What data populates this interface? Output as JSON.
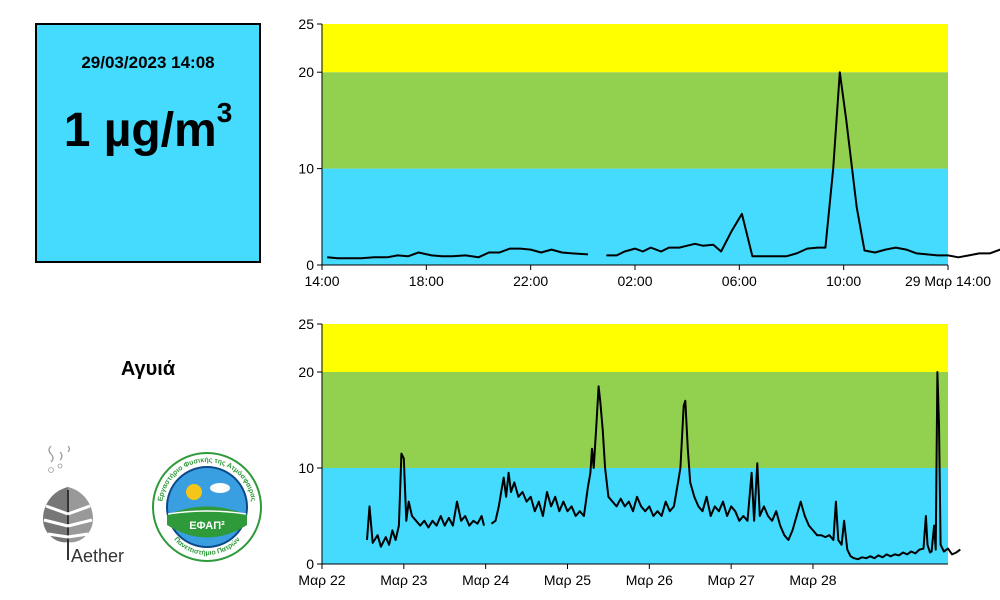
{
  "reading": {
    "datetime": "29/03/2023 14:08",
    "value": "1",
    "unit": "µg/m",
    "unit_exp": "3"
  },
  "station": {
    "name": "Αγυιά"
  },
  "logos": {
    "aether": "Aether",
    "efap_short": "ΕΦΑΠ²",
    "efap_ring_top": "Εργαστήριο Φυσικής της Ατμόσφαιρας",
    "efap_ring_bottom": "Πανεπιστήμιο Πατρών"
  },
  "colors": {
    "band_low": "#44dbff",
    "band_mid": "#92d050",
    "band_high": "#ffff00",
    "line": "#000000",
    "box": "#44dbff"
  },
  "chart_data": [
    {
      "type": "line",
      "yticks": [
        0,
        10,
        20,
        25
      ],
      "ylim": [
        0,
        25
      ],
      "xlim": [
        0,
        24
      ],
      "xticks": [
        0,
        4,
        8,
        12,
        16,
        20,
        24
      ],
      "xtick_labels": [
        "14:00",
        "18:00",
        "22:00",
        "02:00",
        "06:00",
        "10:00",
        "29 Μαρ 14:00"
      ],
      "bands": [
        {
          "from": 0,
          "to": 10
        },
        {
          "from": 10,
          "to": 20
        },
        {
          "from": 20,
          "to": 25
        }
      ],
      "segments": [
        [
          [
            0.2,
            0.8
          ],
          [
            0.6,
            0.7
          ],
          [
            1.0,
            0.7
          ],
          [
            1.5,
            0.7
          ],
          [
            2.0,
            0.8
          ],
          [
            2.5,
            0.8
          ],
          [
            2.9,
            1.0
          ],
          [
            3.3,
            0.9
          ],
          [
            3.7,
            1.3
          ],
          [
            4.2,
            1.0
          ],
          [
            4.6,
            0.9
          ],
          [
            5.0,
            0.9
          ],
          [
            5.5,
            1.0
          ],
          [
            6.0,
            0.8
          ],
          [
            6.4,
            1.3
          ],
          [
            6.8,
            1.3
          ],
          [
            7.2,
            1.7
          ],
          [
            7.6,
            1.7
          ],
          [
            8.0,
            1.6
          ],
          [
            8.4,
            1.3
          ],
          [
            8.8,
            1.6
          ],
          [
            9.2,
            1.3
          ],
          [
            9.6,
            1.2
          ],
          [
            10.2,
            1.1
          ]
        ],
        [
          [
            10.9,
            1.0
          ],
          [
            11.3,
            1.0
          ],
          [
            11.6,
            1.4
          ],
          [
            12.0,
            1.7
          ],
          [
            12.3,
            1.4
          ],
          [
            12.6,
            1.8
          ],
          [
            13.0,
            1.4
          ],
          [
            13.3,
            1.8
          ],
          [
            13.7,
            1.8
          ],
          [
            14.0,
            2.0
          ],
          [
            14.3,
            2.2
          ],
          [
            14.6,
            2.0
          ],
          [
            15.0,
            2.1
          ],
          [
            15.3,
            1.4
          ],
          [
            15.7,
            3.5
          ],
          [
            16.1,
            5.3
          ],
          [
            16.5,
            0.9
          ],
          [
            17.0,
            0.9
          ],
          [
            17.4,
            0.9
          ],
          [
            17.8,
            0.9
          ],
          [
            18.2,
            1.2
          ],
          [
            18.6,
            1.7
          ],
          [
            19.0,
            1.8
          ],
          [
            19.3,
            1.8
          ],
          [
            19.6,
            10.0
          ],
          [
            19.85,
            20.0
          ],
          [
            20.1,
            15.0
          ],
          [
            20.5,
            6.0
          ],
          [
            20.8,
            1.5
          ],
          [
            21.2,
            1.3
          ],
          [
            21.6,
            1.6
          ],
          [
            22.0,
            1.8
          ],
          [
            22.4,
            1.6
          ],
          [
            22.8,
            1.2
          ],
          [
            23.2,
            1.1
          ],
          [
            23.6,
            1.0
          ],
          [
            24.0,
            1.0
          ],
          [
            24.4,
            0.8
          ],
          [
            24.8,
            1.0
          ],
          [
            25.2,
            1.2
          ],
          [
            25.6,
            1.2
          ],
          [
            26.0,
            1.6
          ],
          [
            26.4,
            1.3
          ]
        ]
      ]
    },
    {
      "type": "line",
      "yticks": [
        0,
        10,
        20,
        25
      ],
      "ylim": [
        0,
        25
      ],
      "xlim": [
        0,
        7.65
      ],
      "xticks": [
        0,
        1,
        2,
        3,
        4,
        5,
        6
      ],
      "xtick_labels": [
        "Μαρ 22",
        "Μαρ 23",
        "Μαρ 24",
        "Μαρ 25",
        "Μαρ 26",
        "Μαρ 27",
        "Μαρ 28"
      ],
      "bands": [
        {
          "from": 0,
          "to": 10
        },
        {
          "from": 10,
          "to": 20
        },
        {
          "from": 20,
          "to": 25
        }
      ],
      "segments": [
        [
          [
            0.55,
            2.5
          ],
          [
            0.58,
            6.0
          ],
          [
            0.62,
            2.2
          ],
          [
            0.68,
            3.0
          ],
          [
            0.72,
            1.8
          ],
          [
            0.78,
            2.8
          ],
          [
            0.82,
            2.0
          ],
          [
            0.86,
            3.5
          ],
          [
            0.9,
            2.5
          ],
          [
            0.94,
            4.0
          ],
          [
            0.97,
            11.5
          ],
          [
            1.0,
            11.0
          ],
          [
            1.03,
            4.5
          ],
          [
            1.06,
            6.5
          ],
          [
            1.1,
            5.0
          ],
          [
            1.15,
            4.5
          ],
          [
            1.2,
            4.0
          ],
          [
            1.25,
            4.5
          ],
          [
            1.3,
            3.8
          ],
          [
            1.35,
            4.5
          ],
          [
            1.4,
            4.0
          ],
          [
            1.45,
            5.0
          ],
          [
            1.5,
            4.0
          ],
          [
            1.55,
            4.8
          ],
          [
            1.6,
            4.0
          ],
          [
            1.65,
            6.5
          ],
          [
            1.7,
            4.5
          ],
          [
            1.75,
            5.0
          ],
          [
            1.8,
            4.0
          ],
          [
            1.85,
            4.5
          ],
          [
            1.9,
            4.2
          ],
          [
            1.95,
            5.0
          ],
          [
            1.98,
            4.0
          ]
        ],
        [
          [
            2.07,
            4.2
          ],
          [
            2.12,
            4.5
          ],
          [
            2.16,
            6.0
          ],
          [
            2.2,
            8.0
          ],
          [
            2.22,
            9.0
          ],
          [
            2.25,
            7.0
          ],
          [
            2.28,
            9.5
          ],
          [
            2.31,
            7.5
          ],
          [
            2.35,
            8.5
          ],
          [
            2.4,
            7.0
          ],
          [
            2.45,
            7.5
          ],
          [
            2.5,
            6.5
          ],
          [
            2.55,
            7.0
          ],
          [
            2.6,
            5.5
          ],
          [
            2.65,
            6.5
          ],
          [
            2.7,
            5.0
          ],
          [
            2.75,
            7.5
          ],
          [
            2.8,
            6.0
          ],
          [
            2.85,
            7.0
          ],
          [
            2.9,
            5.5
          ],
          [
            2.95,
            6.5
          ],
          [
            3.0,
            5.5
          ],
          [
            3.05,
            6.0
          ],
          [
            3.1,
            5.0
          ],
          [
            3.15,
            5.5
          ],
          [
            3.2,
            5.0
          ],
          [
            3.25,
            8.0
          ],
          [
            3.28,
            9.5
          ],
          [
            3.3,
            12.0
          ],
          [
            3.32,
            10.0
          ],
          [
            3.35,
            14.0
          ],
          [
            3.38,
            18.5
          ],
          [
            3.4,
            17.0
          ],
          [
            3.43,
            14.0
          ],
          [
            3.46,
            10.0
          ],
          [
            3.5,
            7.0
          ],
          [
            3.55,
            6.5
          ],
          [
            3.6,
            6.0
          ],
          [
            3.65,
            6.8
          ],
          [
            3.7,
            6.0
          ],
          [
            3.75,
            6.5
          ],
          [
            3.8,
            5.5
          ],
          [
            3.85,
            7.0
          ],
          [
            3.9,
            6.0
          ],
          [
            3.95,
            5.5
          ],
          [
            4.0,
            6.0
          ],
          [
            4.05,
            5.0
          ],
          [
            4.1,
            5.5
          ],
          [
            4.15,
            5.0
          ],
          [
            4.2,
            6.5
          ],
          [
            4.25,
            5.5
          ],
          [
            4.3,
            6.0
          ],
          [
            4.35,
            8.5
          ],
          [
            4.38,
            10.0
          ],
          [
            4.42,
            16.5
          ],
          [
            4.44,
            17.0
          ],
          [
            4.47,
            12.0
          ],
          [
            4.5,
            8.5
          ],
          [
            4.55,
            7.0
          ],
          [
            4.6,
            6.0
          ],
          [
            4.65,
            5.5
          ],
          [
            4.7,
            7.0
          ],
          [
            4.75,
            5.0
          ],
          [
            4.8,
            6.0
          ],
          [
            4.85,
            5.5
          ],
          [
            4.9,
            6.5
          ],
          [
            4.95,
            5.0
          ],
          [
            5.0,
            6.0
          ],
          [
            5.05,
            5.5
          ],
          [
            5.1,
            4.5
          ],
          [
            5.15,
            5.0
          ],
          [
            5.2,
            4.5
          ],
          [
            5.25,
            9.5
          ],
          [
            5.28,
            4.5
          ],
          [
            5.32,
            10.5
          ],
          [
            5.35,
            5.0
          ],
          [
            5.4,
            6.0
          ],
          [
            5.45,
            5.0
          ],
          [
            5.5,
            4.5
          ],
          [
            5.55,
            5.5
          ],
          [
            5.6,
            4.0
          ],
          [
            5.65,
            3.0
          ],
          [
            5.7,
            2.5
          ],
          [
            5.75,
            3.5
          ],
          [
            5.8,
            5.0
          ],
          [
            5.85,
            6.5
          ],
          [
            5.9,
            5.0
          ],
          [
            5.95,
            4.0
          ],
          [
            6.0,
            3.5
          ],
          [
            6.05,
            3.0
          ],
          [
            6.1,
            3.0
          ],
          [
            6.15,
            2.8
          ],
          [
            6.2,
            3.0
          ],
          [
            6.25,
            2.5
          ],
          [
            6.28,
            6.5
          ],
          [
            6.31,
            2.5
          ],
          [
            6.35,
            2.0
          ],
          [
            6.38,
            4.5
          ],
          [
            6.42,
            1.5
          ],
          [
            6.46,
            0.8
          ],
          [
            6.5,
            0.6
          ],
          [
            6.55,
            0.5
          ],
          [
            6.6,
            0.7
          ],
          [
            6.65,
            0.6
          ],
          [
            6.7,
            0.8
          ],
          [
            6.75,
            0.6
          ],
          [
            6.8,
            0.9
          ],
          [
            6.85,
            0.7
          ],
          [
            6.9,
            1.0
          ],
          [
            6.95,
            0.8
          ],
          [
            7.0,
            1.0
          ],
          [
            7.05,
            0.9
          ],
          [
            7.1,
            1.2
          ],
          [
            7.15,
            1.0
          ],
          [
            7.2,
            1.3
          ],
          [
            7.25,
            1.1
          ],
          [
            7.3,
            1.5
          ],
          [
            7.35,
            1.6
          ],
          [
            7.38,
            5.0
          ],
          [
            7.4,
            2.0
          ],
          [
            7.43,
            1.2
          ],
          [
            7.45,
            1.3
          ],
          [
            7.48,
            4.0
          ],
          [
            7.5,
            1.5
          ],
          [
            7.52,
            20.0
          ],
          [
            7.54,
            14.5
          ],
          [
            7.56,
            2.0
          ],
          [
            7.6,
            1.3
          ],
          [
            7.65,
            1.6
          ],
          [
            7.7,
            1.0
          ],
          [
            7.75,
            1.2
          ],
          [
            7.8,
            1.5
          ]
        ]
      ]
    }
  ]
}
